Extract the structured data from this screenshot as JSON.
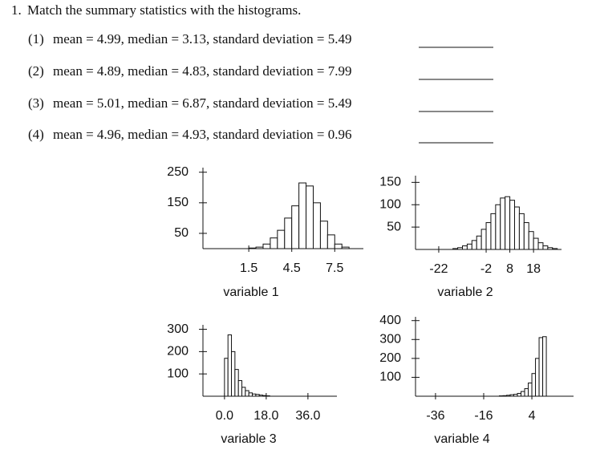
{
  "question": {
    "number": "1.",
    "text": "Match the summary statistics with the histograms."
  },
  "items": [
    {
      "number": "(1)",
      "text": "mean = 4.99, median = 3.13, standard deviation = 5.49"
    },
    {
      "number": "(2)",
      "text": "mean = 4.89, median = 4.83, standard deviation = 7.99"
    },
    {
      "number": "(3)",
      "text": "mean = 5.01, median = 6.87, standard deviation = 5.49"
    },
    {
      "number": "(4)",
      "text": "mean = 4.96, median = 4.93, standard deviation = 0.96"
    }
  ],
  "chart_data": [
    {
      "type": "histogram",
      "x_label": "variable 1",
      "bins": [
        1.5,
        2,
        2.5,
        3,
        3.5,
        4,
        4.5,
        5,
        5.5,
        6,
        6.5,
        7,
        7.5,
        8,
        8.5
      ],
      "counts": [
        2,
        5,
        15,
        35,
        60,
        100,
        140,
        215,
        205,
        150,
        90,
        45,
        15,
        5
      ],
      "xlim": [
        -1.7,
        9.5
      ],
      "ylim": [
        0,
        265
      ],
      "xticks": [
        1.5,
        4.5,
        7.5
      ],
      "yticks": [
        50,
        150,
        250
      ]
    },
    {
      "type": "histogram",
      "x_label": "variable 2",
      "bins": [
        -16,
        -14,
        -12,
        -10,
        -8,
        -6,
        -4,
        -2,
        0,
        2,
        4,
        6,
        8,
        10,
        12,
        14,
        16,
        18,
        20,
        22,
        24,
        26,
        28
      ],
      "counts": [
        2,
        4,
        8,
        12,
        20,
        30,
        45,
        60,
        80,
        100,
        115,
        118,
        110,
        95,
        80,
        60,
        40,
        25,
        15,
        8,
        4,
        2
      ],
      "xlim": [
        -31.8,
        29.8
      ],
      "ylim": [
        0,
        165
      ],
      "xticks": [
        -22,
        -2,
        8,
        18
      ],
      "yticks": [
        50,
        100,
        150
      ]
    },
    {
      "type": "histogram",
      "x_label": "variable 3",
      "bins": [
        0,
        1.5,
        3,
        4.5,
        6,
        7.5,
        9,
        10.5,
        12,
        13.5,
        15,
        16.5,
        18,
        19.5
      ],
      "counts": [
        170,
        275,
        200,
        120,
        70,
        40,
        25,
        15,
        10,
        8,
        5,
        3,
        2
      ],
      "xlim": [
        -9.3,
        48.5
      ],
      "ylim": [
        0,
        320
      ],
      "xticks": [
        {
          "value": 0,
          "label": "0.0"
        },
        {
          "value": 18,
          "label": "18.0"
        },
        {
          "value": 36,
          "label": "36.0"
        }
      ],
      "yticks": [
        100,
        200,
        300
      ]
    },
    {
      "type": "histogram",
      "x_label": "variable 4",
      "bins": [
        -9.5,
        -8,
        -6.5,
        -5,
        -3.5,
        -2,
        -0.5,
        1,
        2.5,
        4,
        5.5,
        7,
        8.5,
        10
      ],
      "counts": [
        2,
        3,
        5,
        8,
        10,
        15,
        25,
        40,
        70,
        120,
        200,
        310,
        315
      ],
      "xlim": [
        -44.3,
        21.3
      ],
      "ylim": [
        0,
        420
      ],
      "xticks": [
        -36,
        -16,
        4
      ],
      "yticks": [
        100,
        200,
        300,
        400
      ]
    }
  ]
}
